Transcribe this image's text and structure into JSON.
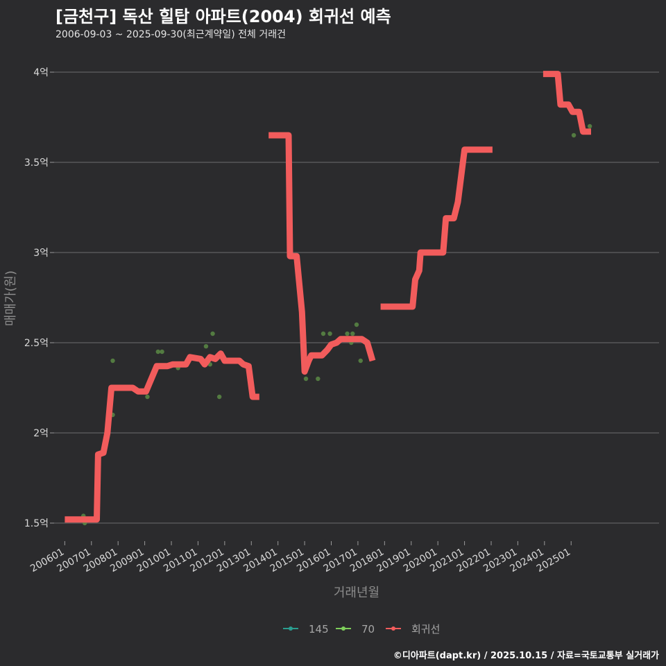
{
  "title": "[금천구] 독산 힐탑 아파트(2004) 회귀선 예측",
  "subtitle": "2006-09-03 ~ 2025-09-30(최근계약일) 전체 거래건",
  "caption": "©디아파트(dapt.kr) / 2025.10.15 / 자료=국토교통부 실거래가",
  "chart_data": {
    "type": "line",
    "xlabel": "거래년월",
    "ylabel": "매매가(원)",
    "x_range": [
      2005.6,
      2028.3
    ],
    "ylim": [
      1.4,
      4.1
    ],
    "y_ticks": [
      1.5,
      2,
      2.5,
      3,
      3.5,
      4
    ],
    "y_tick_labels": [
      "1.5억",
      "2억",
      "2.5억",
      "3억",
      "3.5억",
      "4억"
    ],
    "x_ticks": [
      2006,
      2007,
      2008,
      2009,
      2010,
      2011,
      2012,
      2013,
      2014,
      2015,
      2016,
      2017,
      2018,
      2019,
      2020,
      2021,
      2022,
      2023,
      2024,
      2025
    ],
    "x_tick_labels": [
      "200601",
      "200701",
      "200801",
      "200901",
      "201001",
      "201101",
      "201201",
      "201301",
      "201401",
      "201501",
      "201601",
      "201701",
      "201801",
      "201901",
      "202001",
      "202101",
      "202201",
      "202301",
      "202401",
      "202501"
    ],
    "grid": true,
    "legend_position": "bottom",
    "legend": [
      {
        "name": "145",
        "color": "#2a9d8f"
      },
      {
        "name": "70",
        "color": "#7ecf5a"
      },
      {
        "name": "회귀선",
        "color": "#f25c5c"
      }
    ],
    "series": [
      {
        "name": "70",
        "kind": "scatter",
        "color": "#5a8a45",
        "points": [
          [
            2006.7,
            1.54
          ],
          [
            2006.75,
            1.5
          ],
          [
            2007.8,
            2.1
          ],
          [
            2007.8,
            2.4
          ],
          [
            2009.1,
            2.2
          ],
          [
            2009.5,
            2.45
          ],
          [
            2009.65,
            2.45
          ],
          [
            2010.25,
            2.36
          ],
          [
            2011.3,
            2.48
          ],
          [
            2011.45,
            2.38
          ],
          [
            2011.55,
            2.55
          ],
          [
            2011.8,
            2.2
          ],
          [
            2015.05,
            2.3
          ],
          [
            2015.5,
            2.3
          ],
          [
            2015.7,
            2.55
          ],
          [
            2015.95,
            2.55
          ],
          [
            2016.6,
            2.55
          ],
          [
            2016.75,
            2.5
          ],
          [
            2016.8,
            2.55
          ],
          [
            2016.95,
            2.6
          ],
          [
            2017.1,
            2.4
          ],
          [
            2024.5,
            3.99
          ],
          [
            2025.1,
            3.65
          ],
          [
            2025.7,
            3.7
          ]
        ]
      },
      {
        "name": "회귀선",
        "kind": "line",
        "color": "#f25c5c",
        "segments": [
          [
            [
              2006.0,
              1.52
            ],
            [
              2007.2,
              1.52
            ],
            [
              2007.25,
              1.88
            ],
            [
              2007.45,
              1.89
            ],
            [
              2007.6,
              2.0
            ],
            [
              2007.75,
              2.25
            ],
            [
              2008.55,
              2.25
            ],
            [
              2008.75,
              2.23
            ],
            [
              2009.05,
              2.23
            ],
            [
              2009.25,
              2.3
            ],
            [
              2009.45,
              2.37
            ],
            [
              2009.85,
              2.37
            ],
            [
              2010.05,
              2.38
            ],
            [
              2010.55,
              2.38
            ],
            [
              2010.7,
              2.42
            ],
            [
              2011.1,
              2.41
            ],
            [
              2011.25,
              2.38
            ],
            [
              2011.45,
              2.42
            ],
            [
              2011.65,
              2.41
            ],
            [
              2011.85,
              2.44
            ],
            [
              2012.0,
              2.4
            ],
            [
              2012.35,
              2.4
            ],
            [
              2012.55,
              2.4
            ],
            [
              2012.7,
              2.38
            ],
            [
              2012.9,
              2.37
            ],
            [
              2013.05,
              2.2
            ],
            [
              2013.3,
              2.2
            ]
          ],
          [
            [
              2013.65,
              3.65
            ],
            [
              2014.4,
              3.65
            ],
            [
              2014.45,
              2.98
            ],
            [
              2014.7,
              2.98
            ],
            [
              2014.9,
              2.67
            ],
            [
              2015.0,
              2.34
            ],
            [
              2015.15,
              2.4
            ],
            [
              2015.25,
              2.43
            ],
            [
              2015.65,
              2.43
            ],
            [
              2015.85,
              2.46
            ],
            [
              2016.0,
              2.49
            ],
            [
              2016.2,
              2.5
            ],
            [
              2016.35,
              2.52
            ],
            [
              2017.15,
              2.52
            ],
            [
              2017.35,
              2.5
            ],
            [
              2017.55,
              2.4
            ]
          ],
          [
            [
              2017.85,
              2.7
            ],
            [
              2019.05,
              2.7
            ],
            [
              2019.15,
              2.85
            ],
            [
              2019.3,
              2.9
            ],
            [
              2019.35,
              3.0
            ],
            [
              2019.9,
              3.0
            ],
            [
              2020.2,
              3.0
            ],
            [
              2020.3,
              3.19
            ],
            [
              2020.6,
              3.19
            ],
            [
              2020.75,
              3.28
            ],
            [
              2021.0,
              3.57
            ],
            [
              2022.05,
              3.57
            ]
          ],
          [
            [
              2023.95,
              3.99
            ],
            [
              2024.5,
              3.99
            ],
            [
              2024.6,
              3.82
            ],
            [
              2024.9,
              3.82
            ],
            [
              2025.05,
              3.78
            ],
            [
              2025.3,
              3.78
            ],
            [
              2025.45,
              3.67
            ],
            [
              2025.75,
              3.67
            ]
          ]
        ]
      }
    ]
  }
}
